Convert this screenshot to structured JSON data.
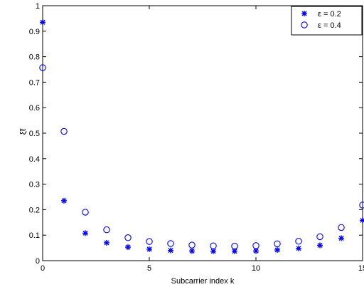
{
  "chart_data": {
    "type": "scatter",
    "x": [
      0,
      1,
      2,
      3,
      4,
      5,
      6,
      7,
      8,
      9,
      10,
      11,
      12,
      13,
      14,
      15
    ],
    "series": [
      {
        "name": "ε = 0.2",
        "marker": "star",
        "color": "#0000ff",
        "values": [
          0.935,
          0.235,
          0.108,
          0.07,
          0.053,
          0.045,
          0.04,
          0.038,
          0.037,
          0.037,
          0.038,
          0.042,
          0.048,
          0.06,
          0.088,
          0.158
        ]
      },
      {
        "name": "ε = 0.4",
        "marker": "circle",
        "color": "#0000ff",
        "values": [
          0.757,
          0.507,
          0.19,
          0.121,
          0.09,
          0.075,
          0.067,
          0.061,
          0.058,
          0.057,
          0.059,
          0.066,
          0.076,
          0.094,
          0.13,
          0.218
        ]
      }
    ],
    "xlabel": "Subcarrier index k",
    "ylabel": "",
    "xlim": [
      0,
      15
    ],
    "ylim": [
      0,
      1
    ],
    "xticks": [
      "0",
      "5",
      "10",
      "15"
    ],
    "yticks": [
      "0",
      "0.1",
      "0.2",
      "0.3",
      "0.4",
      "0.5",
      "0.6",
      "0.7",
      "0.8",
      "0.9",
      "1"
    ],
    "grid": false,
    "legend_position": "top-right"
  }
}
